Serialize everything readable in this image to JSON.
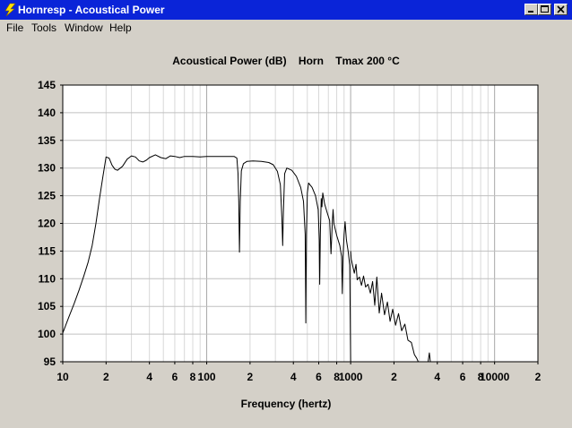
{
  "window": {
    "title": "Hornresp - Acoustical Power",
    "title_bar_color": "#0a24d8"
  },
  "menu": [
    "File",
    "Tools",
    "Window",
    "Help"
  ],
  "chart_data": {
    "type": "line",
    "title": "Acoustical Power (dB)    Horn    Tmax 200 °C",
    "xlabel": "Frequency (hertz)",
    "ylabel": "",
    "x_scale": "log",
    "xlim": [
      10,
      20000
    ],
    "ylim": [
      95,
      145
    ],
    "y_ticks": [
      95,
      100,
      105,
      110,
      115,
      120,
      125,
      130,
      135,
      140,
      145
    ],
    "x_tick_labels": [
      {
        "x": 10,
        "label": "10"
      },
      {
        "x": 20,
        "label": "2"
      },
      {
        "x": 40,
        "label": "4"
      },
      {
        "x": 60,
        "label": "6"
      },
      {
        "x": 80,
        "label": "8"
      },
      {
        "x": 100,
        "label": "100"
      },
      {
        "x": 200,
        "label": "2"
      },
      {
        "x": 400,
        "label": "4"
      },
      {
        "x": 600,
        "label": "6"
      },
      {
        "x": 800,
        "label": "8"
      },
      {
        "x": 1000,
        "label": "1000"
      },
      {
        "x": 2000,
        "label": "2"
      },
      {
        "x": 4000,
        "label": "4"
      },
      {
        "x": 6000,
        "label": "6"
      },
      {
        "x": 8000,
        "label": "8"
      },
      {
        "x": 10000,
        "label": "10000"
      },
      {
        "x": 20000,
        "label": "2"
      }
    ],
    "grid": true,
    "series": [
      {
        "color": "#000000",
        "points": [
          [
            10,
            100.2
          ],
          [
            11,
            103
          ],
          [
            12,
            105.5
          ],
          [
            13,
            108
          ],
          [
            14,
            110.5
          ],
          [
            15,
            113
          ],
          [
            16,
            116
          ],
          [
            17,
            120
          ],
          [
            18,
            124.5
          ],
          [
            19,
            128.5
          ],
          [
            20,
            132
          ],
          [
            21,
            131.8
          ],
          [
            22,
            130.5
          ],
          [
            23,
            129.8
          ],
          [
            24,
            129.6
          ],
          [
            26,
            130.3
          ],
          [
            28,
            131.6
          ],
          [
            30,
            132.2
          ],
          [
            32,
            132
          ],
          [
            34,
            131.3
          ],
          [
            36,
            131.1
          ],
          [
            38,
            131.4
          ],
          [
            40,
            131.9
          ],
          [
            44,
            132.4
          ],
          [
            48,
            131.9
          ],
          [
            52,
            131.7
          ],
          [
            56,
            132.2
          ],
          [
            60,
            132.1
          ],
          [
            65,
            131.9
          ],
          [
            70,
            132.1
          ],
          [
            80,
            132.1
          ],
          [
            90,
            132
          ],
          [
            100,
            132.1
          ],
          [
            120,
            132.1
          ],
          [
            140,
            132.1
          ],
          [
            155,
            132.1
          ],
          [
            162,
            131.8
          ],
          [
            165,
            129
          ],
          [
            167,
            124
          ],
          [
            169,
            114.8
          ],
          [
            171,
            124
          ],
          [
            174,
            129.5
          ],
          [
            180,
            130.8
          ],
          [
            190,
            131.2
          ],
          [
            210,
            131.3
          ],
          [
            240,
            131.2
          ],
          [
            270,
            131
          ],
          [
            290,
            130.6
          ],
          [
            310,
            129.4
          ],
          [
            325,
            127
          ],
          [
            333,
            121
          ],
          [
            337,
            116
          ],
          [
            341,
            122
          ],
          [
            348,
            129
          ],
          [
            360,
            130
          ],
          [
            390,
            129.6
          ],
          [
            420,
            128.5
          ],
          [
            450,
            126.5
          ],
          [
            470,
            124
          ],
          [
            483,
            118
          ],
          [
            488,
            102
          ],
          [
            493,
            118
          ],
          [
            500,
            125.5
          ],
          [
            510,
            127.3
          ],
          [
            540,
            126.5
          ],
          [
            570,
            125
          ],
          [
            595,
            122.5
          ],
          [
            605,
            117
          ],
          [
            610,
            109
          ],
          [
            616,
            118
          ],
          [
            625,
            124.5
          ],
          [
            632,
            123
          ],
          [
            640,
            125.5
          ],
          [
            660,
            123.5
          ],
          [
            690,
            121.8
          ],
          [
            715,
            120.5
          ],
          [
            730,
            114.5
          ],
          [
            745,
            120
          ],
          [
            755,
            122.5
          ],
          [
            765,
            120
          ],
          [
            800,
            117.8
          ],
          [
            840,
            116
          ],
          [
            865,
            114
          ],
          [
            875,
            107.3
          ],
          [
            885,
            114
          ],
          [
            900,
            118
          ],
          [
            915,
            120.3
          ],
          [
            935,
            117
          ],
          [
            960,
            115
          ],
          [
            985,
            112.5
          ],
          [
            1000,
            95
          ]
        ]
      },
      {
        "color": "#000000",
        "points": [
          [
            1000,
            115
          ],
          [
            1010,
            113.5
          ],
          [
            1030,
            112.5
          ],
          [
            1060,
            111
          ],
          [
            1090,
            112.6
          ],
          [
            1110,
            109.8
          ],
          [
            1150,
            110.3
          ],
          [
            1190,
            108.8
          ],
          [
            1230,
            110.5
          ],
          [
            1270,
            108.5
          ],
          [
            1320,
            109
          ],
          [
            1370,
            107.4
          ],
          [
            1420,
            109.5
          ],
          [
            1470,
            105.2
          ],
          [
            1520,
            110.3
          ],
          [
            1580,
            103.8
          ],
          [
            1640,
            107.4
          ],
          [
            1720,
            103.5
          ],
          [
            1800,
            105.8
          ],
          [
            1880,
            102.3
          ],
          [
            1960,
            104.5
          ],
          [
            2050,
            101.6
          ],
          [
            2150,
            103.7
          ],
          [
            2260,
            100.6
          ],
          [
            2380,
            101.8
          ],
          [
            2500,
            98.9
          ],
          [
            2640,
            98.5
          ],
          [
            2770,
            96.3
          ],
          [
            2880,
            95.6
          ],
          [
            2950,
            95
          ]
        ]
      },
      {
        "color": "#000000",
        "points": [
          [
            3450,
            95
          ],
          [
            3520,
            96.6
          ],
          [
            3580,
            95
          ]
        ]
      }
    ]
  }
}
